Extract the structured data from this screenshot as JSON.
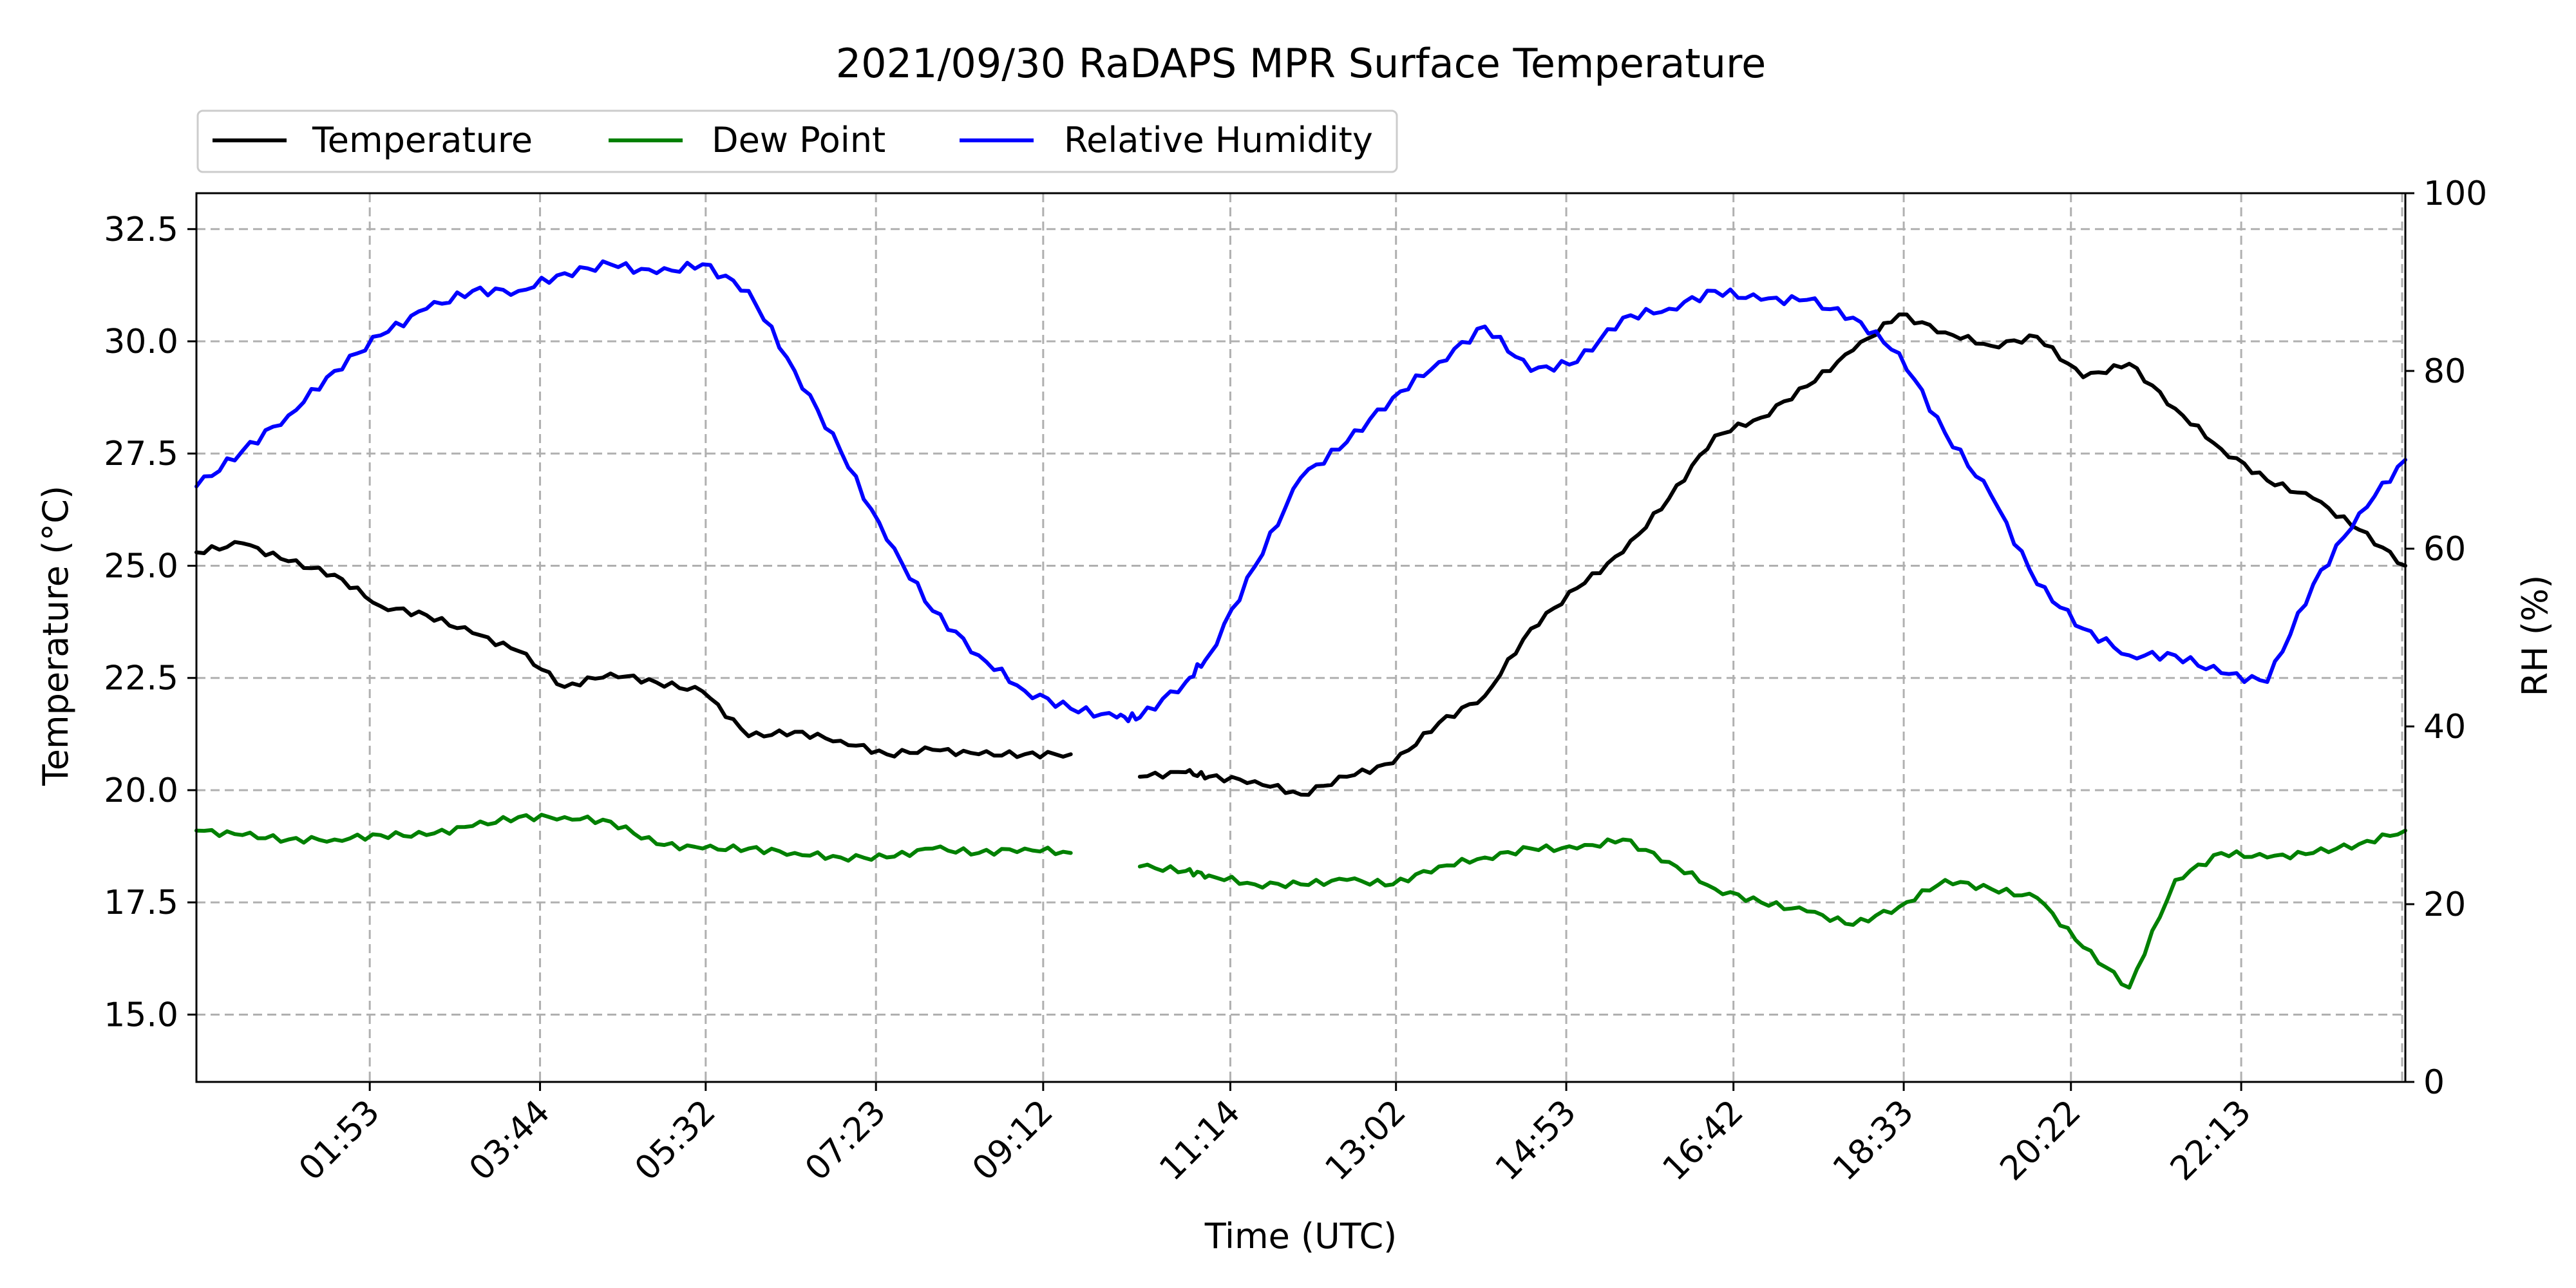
{
  "chart_data": {
    "type": "line",
    "title": "2021/09/30 RaDAPS MPR Surface Temperature",
    "xlabel": "Time (UTC)",
    "ylabel": "Temperature ($^\\circ$C)",
    "ylabel_display": "Temperature (°C)",
    "ylabel_right": "RH (%)",
    "xlim": [
      "00:00",
      "24:00"
    ],
    "ylim": [
      13.5,
      33.3
    ],
    "ylim_right": [
      0,
      100
    ],
    "x_ticks": [
      "01:53",
      "03:44",
      "05:32",
      "07:23",
      "09:12",
      "11:14",
      "13:02",
      "14:53",
      "16:42",
      "18:33",
      "20:22",
      "22:13"
    ],
    "y_ticks": [
      "15.0",
      "17.5",
      "20.0",
      "22.5",
      "25.0",
      "27.5",
      "30.0",
      "32.5"
    ],
    "y_ticks_right": [
      "0",
      "20",
      "40",
      "60",
      "80",
      "100"
    ],
    "grid": true,
    "legend": {
      "placement": "top-left, above plot",
      "entries": [
        "Temperature",
        "Dew Point",
        "Relative Humidity"
      ]
    },
    "x": [
      "00:00",
      "00:30",
      "01:00",
      "01:30",
      "02:00",
      "02:30",
      "03:00",
      "03:30",
      "04:00",
      "04:30",
      "05:00",
      "05:30",
      "06:00",
      "06:30",
      "07:00",
      "07:30",
      "08:00",
      "08:30",
      "09:00",
      "09:30",
      "10:00",
      "10:15",
      "10:45",
      "11:00",
      "11:30",
      "12:00",
      "12:30",
      "13:00",
      "13:30",
      "14:00",
      "14:30",
      "15:00",
      "15:30",
      "16:00",
      "16:30",
      "17:00",
      "17:30",
      "18:00",
      "18:30",
      "19:00",
      "19:30",
      "20:00",
      "20:30",
      "21:00",
      "21:30",
      "22:00",
      "22:30",
      "23:00",
      "23:30",
      "24:00"
    ],
    "series": [
      {
        "name": "Temperature",
        "axis": "left",
        "color": "#000000",
        "values": [
          25.3,
          25.5,
          25.1,
          24.8,
          24.1,
          23.9,
          23.5,
          23.1,
          22.3,
          22.6,
          22.4,
          22.2,
          21.2,
          21.3,
          21.1,
          20.8,
          20.9,
          20.8,
          20.8,
          20.8,
          null,
          20.3,
          20.4,
          20.3,
          20.2,
          19.9,
          20.3,
          20.6,
          21.5,
          22.1,
          23.6,
          24.5,
          25.3,
          26.5,
          27.9,
          28.3,
          29.0,
          29.8,
          30.6,
          30.2,
          29.9,
          30.1,
          29.2,
          29.5,
          28.5,
          27.6,
          26.9,
          26.5,
          25.8,
          25.0
        ]
      },
      {
        "name": "Dew Point",
        "axis": "left",
        "color": "#008000",
        "values": [
          19.1,
          19.0,
          18.9,
          18.9,
          19.0,
          19.0,
          19.2,
          19.4,
          19.4,
          19.3,
          18.8,
          18.7,
          18.7,
          18.6,
          18.5,
          18.5,
          18.7,
          18.6,
          18.7,
          18.6,
          null,
          18.3,
          18.2,
          18.1,
          17.9,
          17.9,
          18.0,
          17.9,
          18.3,
          18.5,
          18.7,
          18.7,
          18.9,
          18.4,
          17.8,
          17.5,
          17.3,
          17.0,
          17.4,
          18.0,
          17.8,
          17.6,
          16.5,
          15.6,
          18.0,
          18.6,
          18.5,
          18.6,
          18.8,
          19.1
        ]
      },
      {
        "name": "Relative Humidity",
        "axis": "right",
        "color": "#0000ff",
        "values": [
          67,
          71,
          75,
          80,
          84,
          87,
          89,
          89,
          91,
          92,
          91,
          92,
          89,
          80,
          71,
          61,
          53,
          48,
          44,
          42,
          41,
          41,
          45,
          48,
          58,
          68,
          72,
          77,
          81,
          85,
          80,
          81,
          86,
          87,
          89,
          88,
          88,
          86,
          82,
          73,
          66,
          56,
          51,
          48,
          48,
          46,
          45,
          56,
          64,
          70
        ]
      }
    ]
  }
}
